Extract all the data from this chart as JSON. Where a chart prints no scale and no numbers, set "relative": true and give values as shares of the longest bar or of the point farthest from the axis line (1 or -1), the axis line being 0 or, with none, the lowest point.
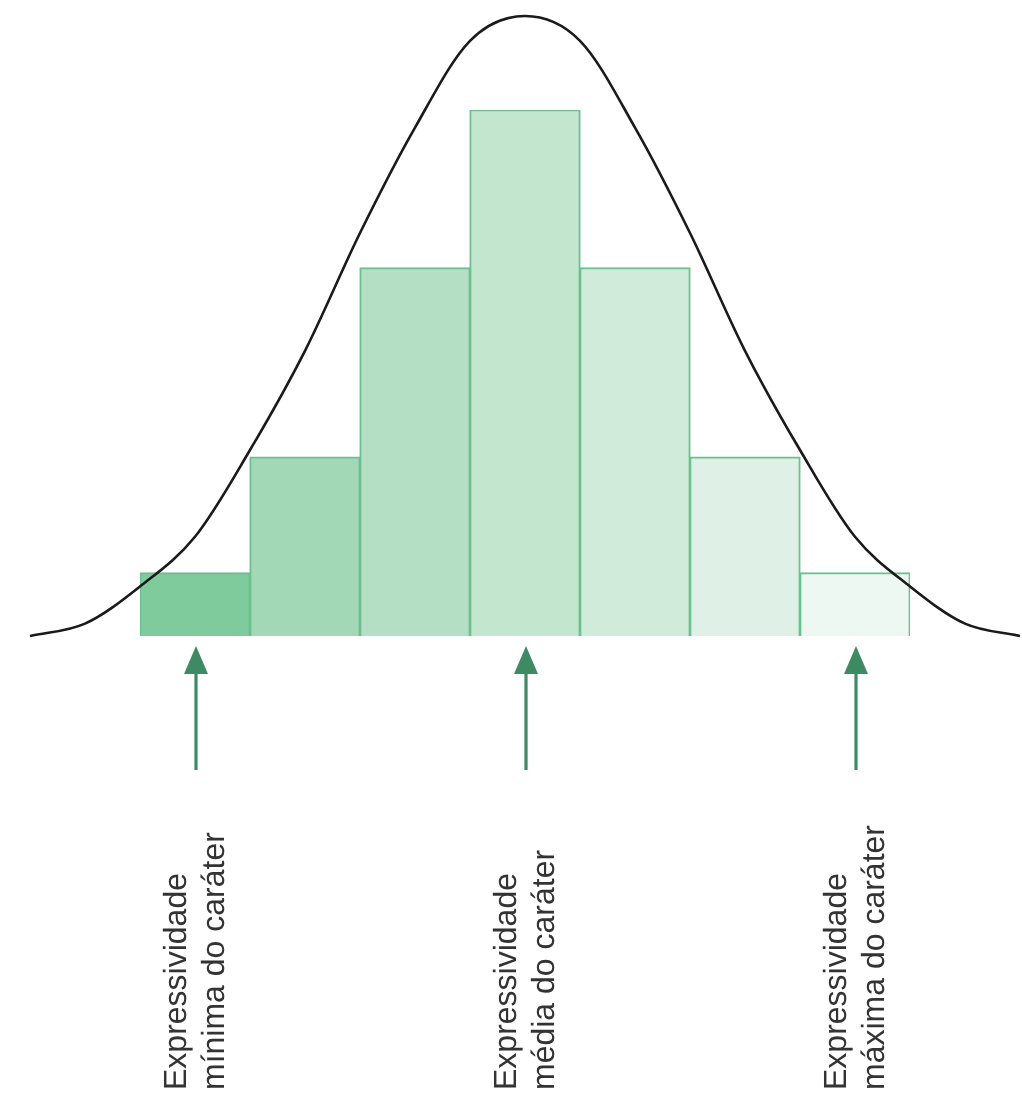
{
  "chart_data": [
    {
      "type": "bar",
      "relative": true,
      "categories": [
        null,
        null,
        null,
        null,
        null,
        null,
        null
      ],
      "values": [
        0.12,
        0.34,
        0.7,
        1,
        0.7,
        0.34,
        0.12
      ],
      "colors": [
        "#7fcb9c",
        "#a3d8b7",
        "#b4dfc4",
        "#c3e6cf",
        "#d1ebdb",
        "#dff1e6",
        "#eef8f2"
      ],
      "annotations": [
        "Expressividade mínima do caráter",
        "Expressividade média do caráter",
        "Expressividade máxima do caráter"
      ]
    },
    {
      "type": "line",
      "relative": true,
      "categories": [
        null,
        null,
        null,
        null,
        null,
        null,
        null,
        null,
        null,
        null,
        null,
        null,
        null,
        null,
        null,
        null,
        null,
        null,
        null
      ],
      "color": "#1a1a1a",
      "values": [
        0,
        0.02,
        0.08,
        0.16,
        0.3,
        0.46,
        0.65,
        0.82,
        0.96,
        1,
        0.96,
        0.82,
        0.65,
        0.46,
        0.3,
        0.16,
        0.08,
        0.02,
        0
      ]
    }
  ]
}
